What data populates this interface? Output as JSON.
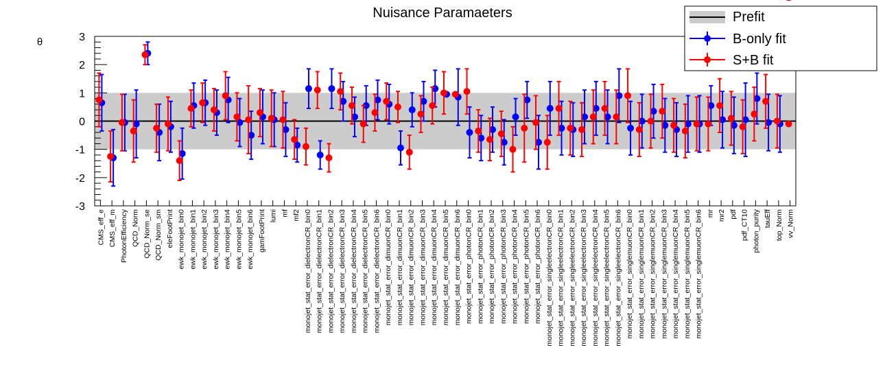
{
  "chart_data": {
    "type": "scatter",
    "title": "Nuisance Paramaeters",
    "xlabel": "",
    "ylabel": "θ",
    "ylim": [
      -3,
      3
    ],
    "yticks": [
      "-3",
      "-2",
      "-1",
      "0",
      "1",
      "2",
      "3"
    ],
    "band": {
      "label": "Prefit",
      "low": -1,
      "high": 1,
      "center": 0,
      "color": "#cccccc"
    },
    "legend_position": "top-right",
    "categories": [
      "CMS_eff_e",
      "CMS_eff_m",
      "PhotonEfficiency",
      "QCD_Norm",
      "QCD_Norm_se",
      "QCD_Norm_sm",
      "eleFootPrint",
      "ewk_monojet_bin0",
      "ewk_monojet_bin1",
      "ewk_monojet_bin2",
      "ewk_monojet_bin3",
      "ewk_monojet_bin4",
      "ewk_monojet_bin5",
      "ewk_monojet_bin6",
      "gamFootPrint",
      "lumi",
      "mf",
      "mf2",
      "monojet_stat_error_dielectronCR_bin0",
      "monojet_stat_error_dielectronCR_bin1",
      "monojet_stat_error_dielectronCR_bin2",
      "monojet_stat_error_dielectronCR_bin3",
      "monojet_stat_error_dielectronCR_bin4",
      "monojet_stat_error_dielectronCR_bin5",
      "monojet_stat_error_dielectronCR_bin6",
      "monojet_stat_error_dimuonCR_bin0",
      "monojet_stat_error_dimuonCR_bin1",
      "monojet_stat_error_dimuonCR_bin2",
      "monojet_stat_error_dimuonCR_bin3",
      "monojet_stat_error_dimuonCR_bin4",
      "monojet_stat_error_dimuonCR_bin5",
      "monojet_stat_error_dimuonCR_bin6",
      "monojet_stat_error_photonCR_bin0",
      "monojet_stat_error_photonCR_bin1",
      "monojet_stat_error_photonCR_bin2",
      "monojet_stat_error_photonCR_bin3",
      "monojet_stat_error_photonCR_bin4",
      "monojet_stat_error_photonCR_bin5",
      "monojet_stat_error_photonCR_bin6",
      "monojet_stat_error_singleelectronCR_bin0",
      "monojet_stat_error_singleelectronCR_bin1",
      "monojet_stat_error_singleelectronCR_bin2",
      "monojet_stat_error_singleelectronCR_bin3",
      "monojet_stat_error_singleelectronCR_bin4",
      "monojet_stat_error_singleelectronCR_bin5",
      "monojet_stat_error_singleelectronCR_bin6",
      "monojet_stat_error_singlemuonCR_bin0",
      "monojet_stat_error_singlemuonCR_bin1",
      "monojet_stat_error_singlemuonCR_bin2",
      "monojet_stat_error_singlemuonCR_bin3",
      "monojet_stat_error_singlemuonCR_bin4",
      "monojet_stat_error_singlemuonCR_bin5",
      "monojet_stat_error_singlemuonCR_bin6",
      "mr",
      "mr2",
      "pdf",
      "pdf_CT10",
      "photon_purity",
      "tauEff",
      "top_Norm",
      "vv_Norm"
    ],
    "series": [
      {
        "name": "B-only fit",
        "color": "#0000ff",
        "values": [
          0.65,
          -1.3,
          -0.05,
          -0.1,
          2.4,
          -0.4,
          -0.2,
          -1.15,
          0.55,
          0.65,
          0.3,
          0.75,
          -0.05,
          -0.5,
          0.15,
          0.05,
          -0.3,
          -0.85,
          1.15,
          -1.2,
          1.15,
          0.7,
          0.15,
          0.55,
          0.75,
          0.6,
          -0.95,
          0.4,
          0.7,
          1.15,
          0.95,
          0.85,
          -0.4,
          -0.6,
          -0.3,
          -0.75,
          0.15,
          0.75,
          -0.75,
          0.45,
          -0.25,
          -0.3,
          0.15,
          0.45,
          0.15,
          0.9,
          -0.25,
          0.0,
          0.35,
          -0.15,
          -0.3,
          -0.1,
          -0.1,
          0.55,
          0.05,
          -0.15,
          0.05,
          0.8,
          -0.05,
          -0.1
        ],
        "err_low": [
          1.0,
          1.0,
          1.0,
          1.2,
          0.4,
          1.0,
          0.9,
          0.9,
          0.8,
          0.8,
          0.8,
          0.8,
          0.85,
          0.85,
          0.95,
          0.95,
          0.95,
          0.6,
          0.7,
          0.5,
          0.7,
          0.7,
          0.7,
          0.7,
          0.7,
          0.7,
          0.6,
          0.6,
          0.7,
          0.65,
          0.05,
          1.0,
          0.9,
          0.8,
          0.8,
          0.8,
          0.65,
          0.65,
          0.95,
          0.95,
          0.95,
          0.95,
          0.95,
          0.95,
          0.95,
          0.95,
          0.95,
          0.95,
          0.95,
          0.95,
          0.95,
          1.0,
          1.0,
          0.7,
          1.0,
          1.0,
          1.3,
          0.9,
          1.0,
          1.0
        ],
        "err_high": [
          1.0,
          1.0,
          1.0,
          1.2,
          0.4,
          1.0,
          0.9,
          0.9,
          0.8,
          0.8,
          0.8,
          0.8,
          0.85,
          0.85,
          0.95,
          0.95,
          0.95,
          0.6,
          0.7,
          0.5,
          0.7,
          0.7,
          0.7,
          0.7,
          0.7,
          0.7,
          0.6,
          0.6,
          0.7,
          0.65,
          0.05,
          1.0,
          0.9,
          0.8,
          0.8,
          0.8,
          0.65,
          0.65,
          0.95,
          0.95,
          0.95,
          0.95,
          0.95,
          0.95,
          0.95,
          0.95,
          0.95,
          0.95,
          0.95,
          0.95,
          0.95,
          1.0,
          1.0,
          0.7,
          1.0,
          1.0,
          1.3,
          0.9,
          1.0,
          1.0
        ]
      },
      {
        "name": "S+B fit",
        "color": "#ff0000",
        "values": [
          0.75,
          -1.25,
          -0.05,
          -0.35,
          2.35,
          -0.25,
          -0.1,
          -1.4,
          0.45,
          0.65,
          0.4,
          0.9,
          0.15,
          0.05,
          0.3,
          0.1,
          0.05,
          -0.65,
          -0.9,
          1.1,
          -1.3,
          1.05,
          0.55,
          -0.1,
          0.3,
          0.7,
          0.5,
          -1.1,
          0.25,
          0.55,
          1.0,
          0.95,
          1.05,
          -0.35,
          -0.65,
          -0.45,
          -1.0,
          -0.25,
          -0.05,
          -0.75,
          0.45,
          -0.25,
          -0.3,
          0.15,
          0.45,
          0.15,
          0.9,
          -0.3,
          0.0,
          0.35,
          -0.15,
          -0.35,
          -0.1,
          -0.1,
          0.55,
          0.1,
          -0.2,
          0.25,
          0.7,
          0.0,
          -0.1
        ],
        "err_low": [
          0.95,
          0.9,
          1.0,
          1.1,
          0.35,
          0.85,
          0.95,
          0.7,
          0.65,
          0.7,
          0.75,
          0.85,
          0.85,
          1.2,
          0.85,
          1.0,
          1.0,
          0.7,
          0.65,
          0.65,
          0.5,
          0.65,
          0.65,
          0.65,
          0.65,
          0.65,
          0.55,
          0.6,
          0.65,
          0.65,
          0.75,
          0.05,
          0.8,
          0.75,
          0.75,
          0.8,
          0.8,
          1.2,
          0.95,
          0.95,
          0.95,
          0.95,
          0.95,
          0.95,
          0.95,
          0.95,
          0.95,
          0.95,
          0.95,
          0.95,
          0.95,
          0.95,
          0.95,
          0.95,
          0.95,
          0.95,
          0.95,
          0.95,
          0.95,
          0.95
        ],
        "err_high": [
          0.95,
          0.9,
          1.0,
          1.1,
          0.35,
          0.85,
          0.95,
          0.7,
          0.65,
          0.7,
          0.75,
          0.85,
          0.85,
          1.2,
          0.85,
          1.0,
          1.0,
          0.7,
          0.65,
          0.65,
          0.5,
          0.65,
          0.65,
          0.65,
          0.65,
          0.65,
          0.55,
          0.6,
          0.65,
          0.65,
          0.75,
          0.05,
          0.8,
          0.75,
          0.75,
          0.8,
          0.8,
          1.2,
          0.95,
          0.95,
          0.95,
          0.95,
          0.95,
          0.95,
          0.95,
          0.95,
          0.95,
          0.95,
          0.95,
          0.95,
          0.95,
          0.95,
          0.95,
          0.95,
          0.95,
          0.95,
          0.95,
          0.95,
          0.95,
          0.95
        ]
      }
    ]
  }
}
